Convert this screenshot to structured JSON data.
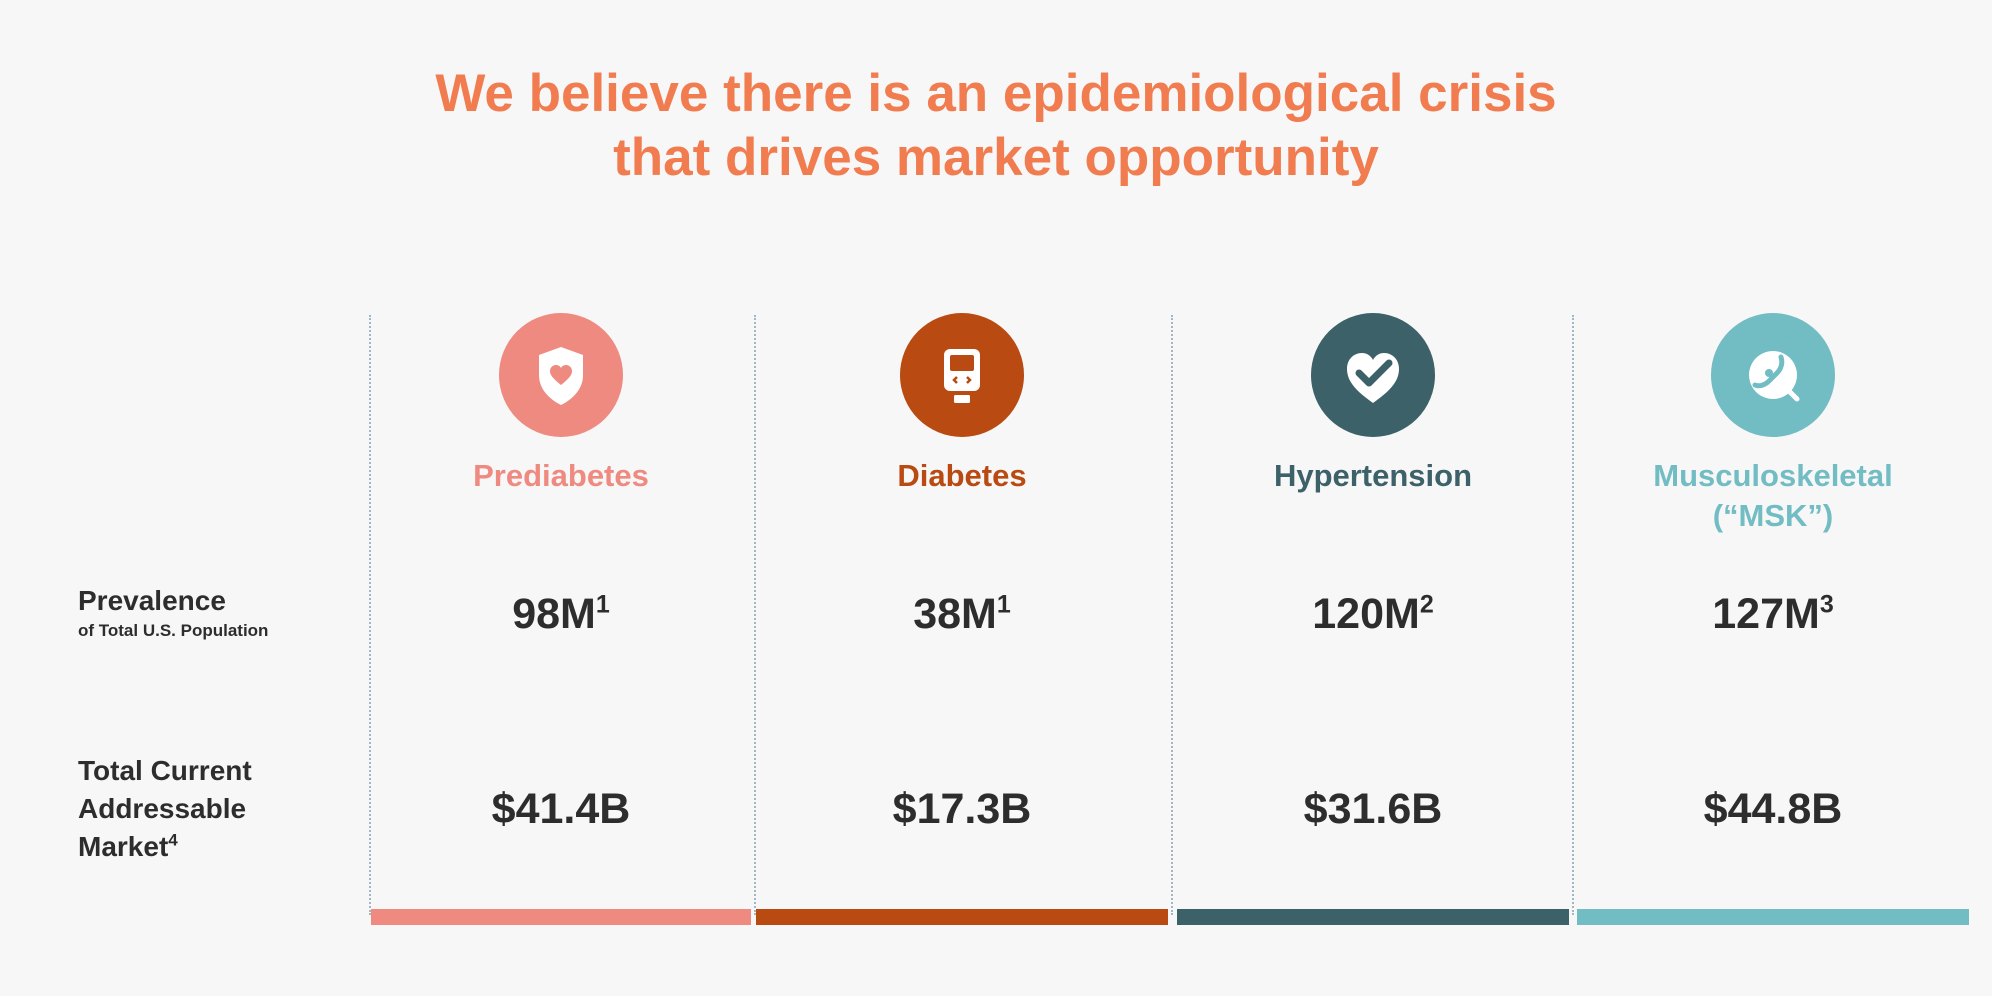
{
  "title_line1": "We believe there is an epidemiological crisis",
  "title_line2": "that drives market opportunity",
  "rows": {
    "prevalence_label": "Prevalence",
    "prevalence_sub": "of Total U.S. Population",
    "tam_line1": "Total Current",
    "tam_line2": "Addressable",
    "tam_line3": "Market",
    "tam_sup": "4"
  },
  "columns": [
    {
      "name": "Prediabetes",
      "name2": "",
      "prevalence": "98M",
      "prevalence_sup": "1",
      "tam": "$41.4B",
      "color": "#ee8a80",
      "icon": "shield-heart-icon"
    },
    {
      "name": "Diabetes",
      "name2": "",
      "prevalence": "38M",
      "prevalence_sup": "1",
      "tam": "$17.3B",
      "color": "#b84a12",
      "icon": "glucose-meter-icon"
    },
    {
      "name": "Hypertension",
      "name2": "",
      "prevalence": "120M",
      "prevalence_sup": "2",
      "tam": "$31.6B",
      "color": "#3c6169",
      "icon": "heart-check-icon"
    },
    {
      "name": "Musculoskeletal",
      "name2": "(“MSK”)",
      "prevalence": "127M",
      "prevalence_sup": "3",
      "tam": "$44.8B",
      "color": "#72bcc4",
      "icon": "bone-icon"
    }
  ]
}
